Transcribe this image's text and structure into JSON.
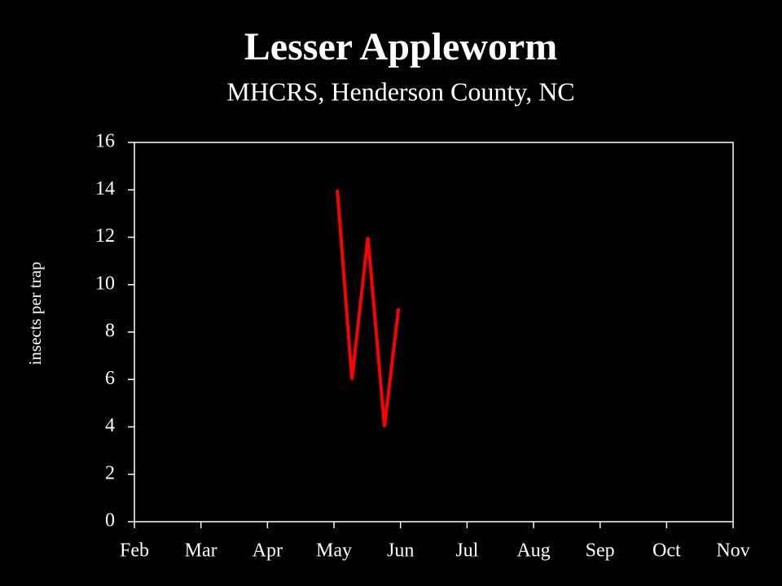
{
  "chart_data": {
    "type": "line",
    "title": "Lesser Appleworm",
    "subtitle": "MHCRS, Henderson County, NC",
    "y_label": "insects per trap",
    "x": [
      5.05,
      5.27,
      5.51,
      5.76,
      5.97
    ],
    "series": [
      {
        "name": "Lesser Appleworm",
        "color": "#ff0000",
        "values": [
          14,
          6,
          12,
          4,
          9
        ]
      }
    ],
    "xlim": [
      2,
      11
    ],
    "xticks": [
      {
        "value": 2,
        "label": "Feb"
      },
      {
        "value": 3,
        "label": "Mar"
      },
      {
        "value": 4,
        "label": "Apr"
      },
      {
        "value": 5,
        "label": "May"
      },
      {
        "value": 6,
        "label": "Jun"
      },
      {
        "value": 7,
        "label": "Jul"
      },
      {
        "value": 8,
        "label": "Aug"
      },
      {
        "value": 9,
        "label": "Sep"
      },
      {
        "value": 10,
        "label": "Oct"
      },
      {
        "value": 11,
        "label": "Nov"
      }
    ],
    "ylim": [
      0,
      16
    ],
    "yticks": [
      0,
      2,
      4,
      6,
      8,
      10,
      12,
      14,
      16
    ],
    "grid": false
  }
}
